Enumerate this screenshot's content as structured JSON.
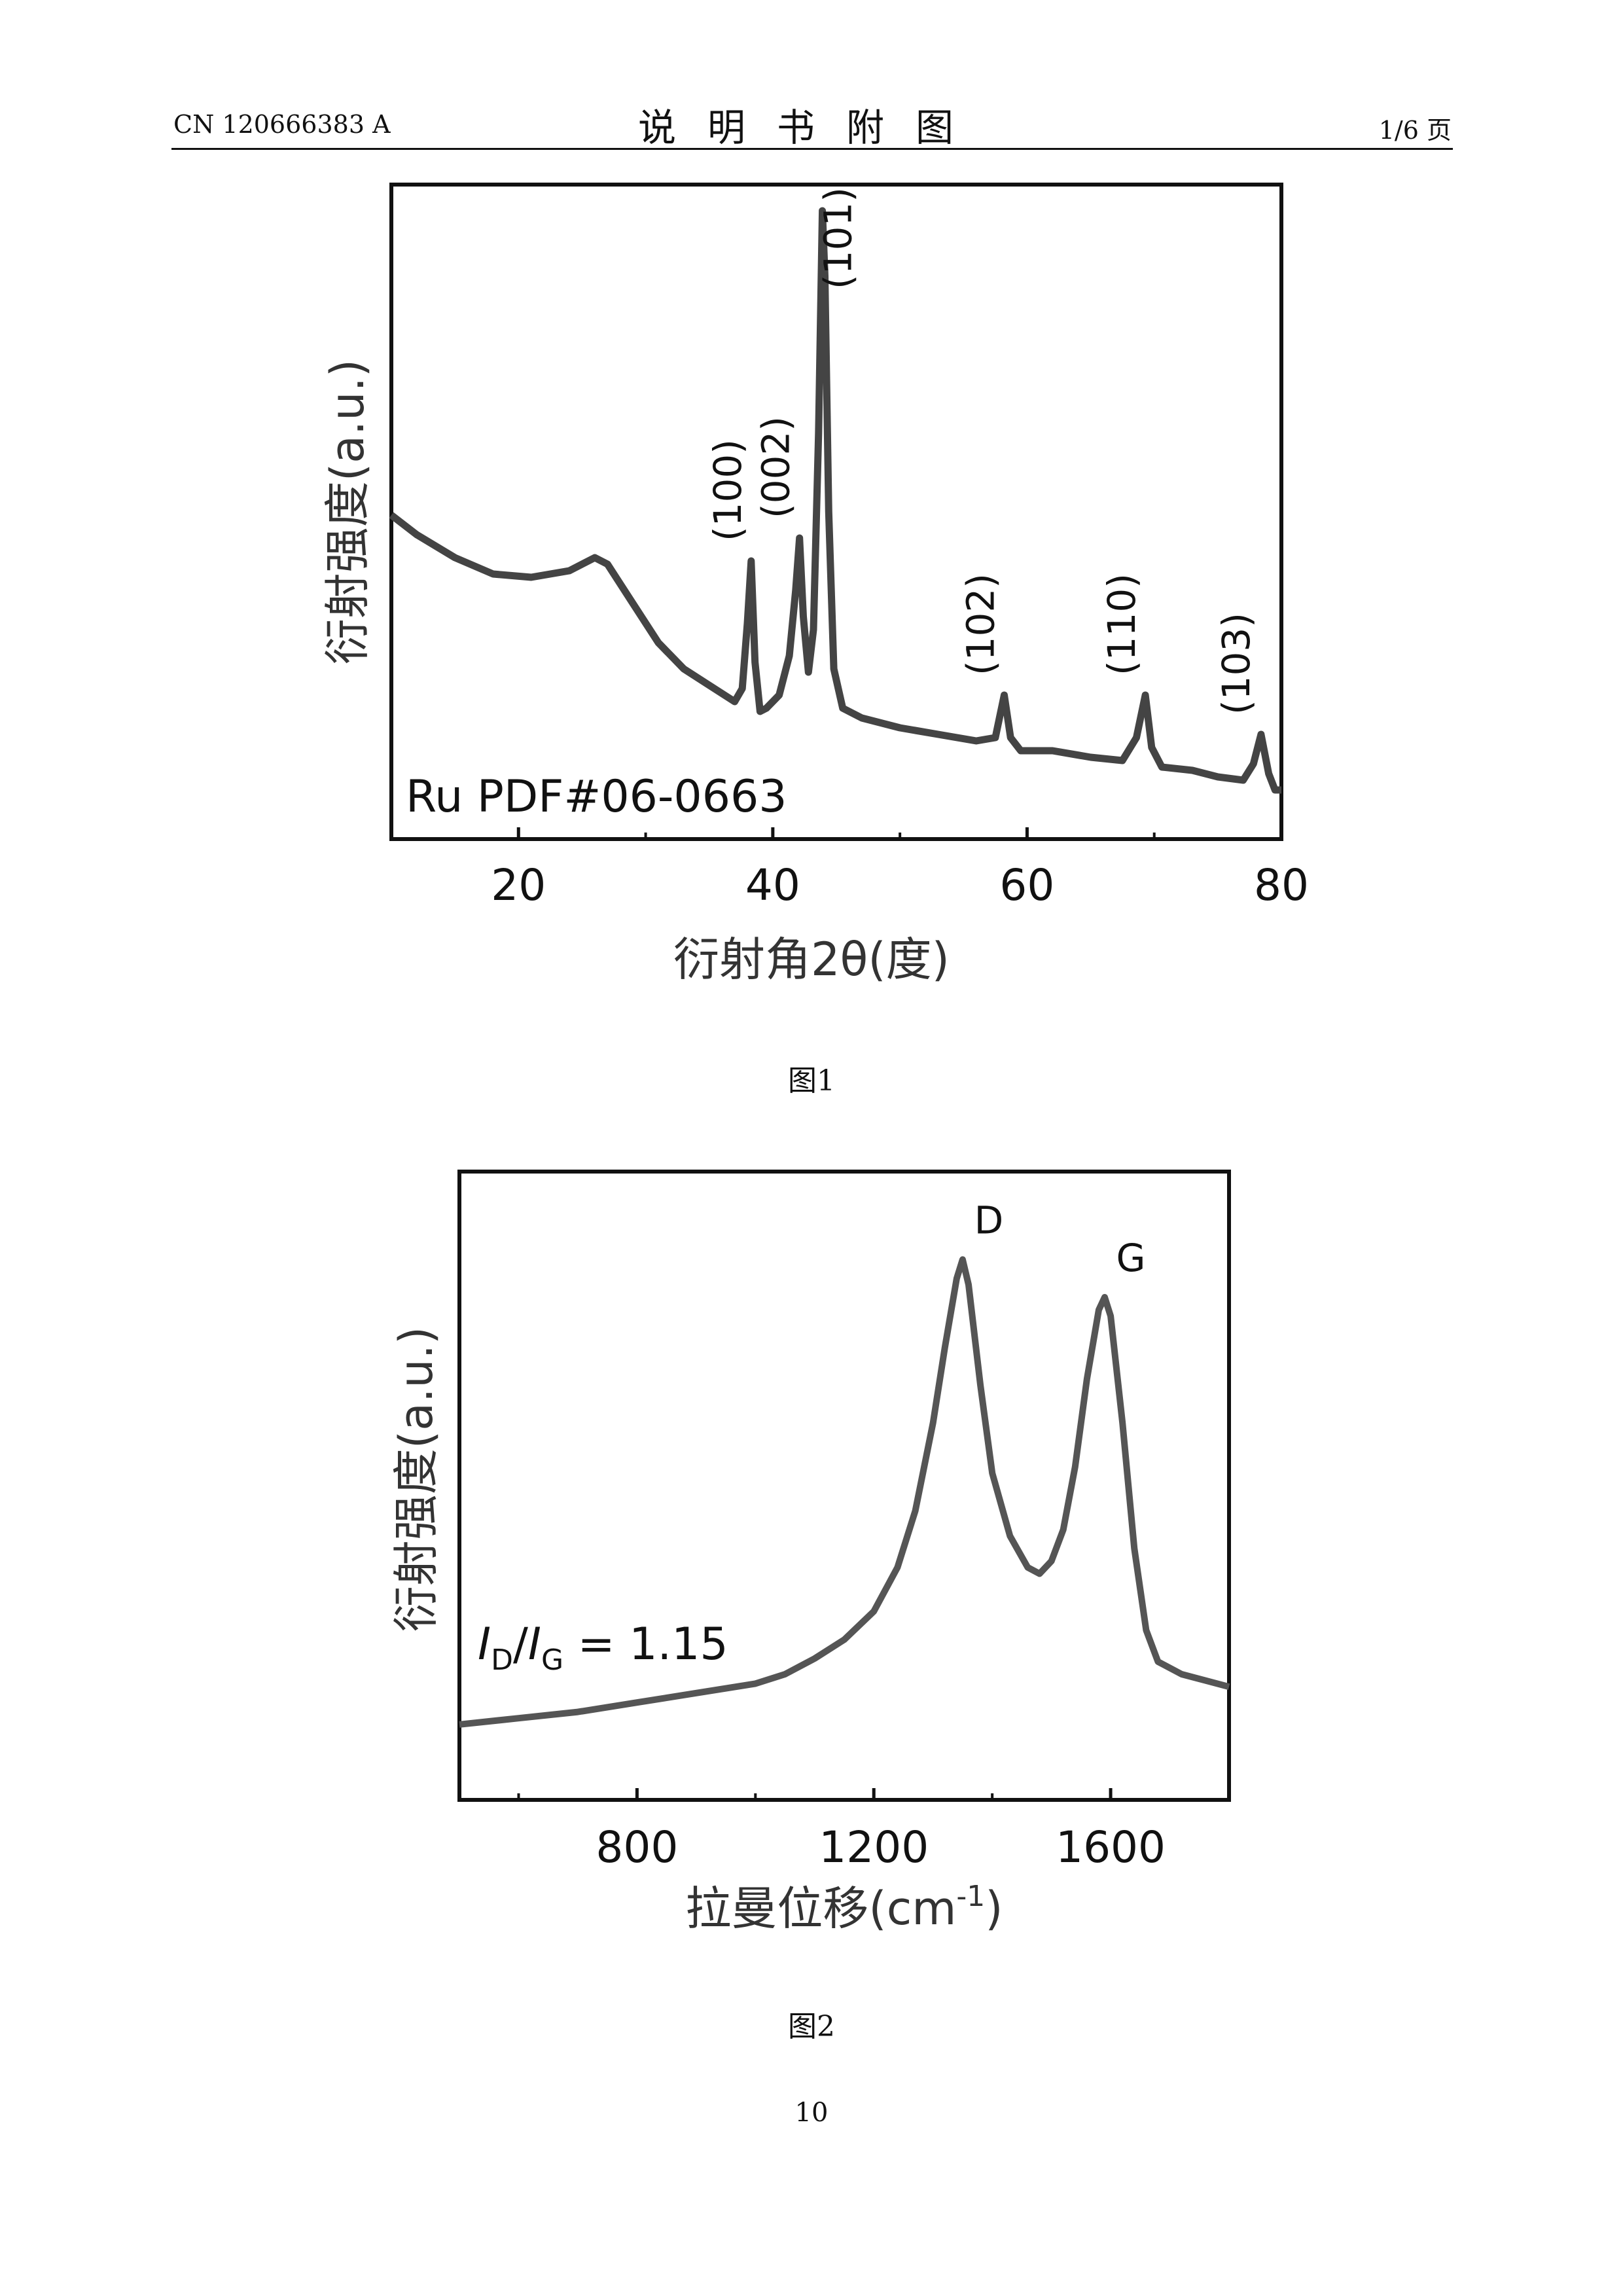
{
  "header": {
    "patent_number": "CN 120666383 A",
    "section_title": "说明书附图",
    "page_of": "1/6 页"
  },
  "figures": [
    {
      "caption": "图1"
    },
    {
      "caption": "图2"
    }
  ],
  "page_number": "10",
  "chart_data": [
    {
      "type": "line",
      "xlabel": "衍射角2θ(度)",
      "ylabel": "衍射强度(a.u.)",
      "xlim": [
        10,
        80
      ],
      "ylim": [
        0,
        1
      ],
      "xticks": [
        "20",
        "40",
        "60",
        "80"
      ],
      "xtick_values": [
        20,
        40,
        60,
        80
      ],
      "annotation": "Ru PDF#06-0663",
      "peak_labels": [
        {
          "label": "(100)",
          "x": 38.4
        },
        {
          "label": "(002)",
          "x": 42.2
        },
        {
          "label": "(101)",
          "x": 44.0
        },
        {
          "label": "(102)",
          "x": 58.3
        },
        {
          "label": "(110)",
          "x": 69.4
        },
        {
          "label": "(103)",
          "x": 78.4
        }
      ],
      "series": [
        {
          "x": [
            10,
            12,
            15,
            18,
            21,
            24,
            26,
            27,
            29,
            31,
            33,
            35,
            37,
            37.6,
            38.0,
            38.3,
            38.6,
            39.0,
            39.5,
            40.5,
            41.3,
            41.8,
            42.1,
            42.4,
            42.8,
            43.2,
            43.6,
            43.9,
            44.1,
            44.4,
            44.8,
            45.5,
            47,
            50,
            53,
            56,
            57.5,
            58.2,
            58.7,
            59.5,
            62,
            65,
            67.5,
            68.6,
            69.3,
            69.8,
            70.6,
            73,
            75,
            77,
            77.8,
            78.4,
            79,
            79.5,
            80
          ],
          "y": [
            0.495,
            0.465,
            0.43,
            0.405,
            0.4,
            0.41,
            0.43,
            0.42,
            0.36,
            0.3,
            0.26,
            0.235,
            0.21,
            0.23,
            0.33,
            0.425,
            0.27,
            0.195,
            0.2,
            0.22,
            0.28,
            0.38,
            0.46,
            0.34,
            0.255,
            0.32,
            0.62,
            0.96,
            0.86,
            0.5,
            0.26,
            0.2,
            0.185,
            0.17,
            0.16,
            0.15,
            0.155,
            0.22,
            0.155,
            0.135,
            0.135,
            0.125,
            0.12,
            0.155,
            0.22,
            0.14,
            0.11,
            0.105,
            0.095,
            0.09,
            0.115,
            0.16,
            0.1,
            0.075,
            0.075
          ]
        }
      ]
    },
    {
      "type": "line",
      "xlabel": "拉曼位移(cm-1)",
      "ylabel": "衍射强度(a.u.)",
      "xlim": [
        500,
        1800
      ],
      "ylim": [
        0,
        1
      ],
      "xticks": [
        "800",
        "1200",
        "1600"
      ],
      "xtick_values": [
        800,
        1200,
        1600
      ],
      "annotation": "I_D/I_G = 1.15",
      "peak_labels": [
        {
          "label": "D",
          "x": 1350
        },
        {
          "label": "G",
          "x": 1590
        }
      ],
      "series": [
        {
          "x": [
            500,
            600,
            700,
            800,
            900,
            1000,
            1050,
            1100,
            1150,
            1200,
            1240,
            1270,
            1300,
            1320,
            1340,
            1350,
            1360,
            1380,
            1400,
            1430,
            1460,
            1480,
            1500,
            1520,
            1540,
            1560,
            1580,
            1590,
            1600,
            1620,
            1640,
            1660,
            1680,
            1720,
            1760,
            1800
          ],
          "y": [
            0.12,
            0.13,
            0.14,
            0.155,
            0.17,
            0.185,
            0.2,
            0.225,
            0.255,
            0.3,
            0.37,
            0.46,
            0.6,
            0.72,
            0.83,
            0.86,
            0.82,
            0.66,
            0.52,
            0.42,
            0.37,
            0.36,
            0.38,
            0.43,
            0.53,
            0.67,
            0.78,
            0.8,
            0.77,
            0.6,
            0.4,
            0.27,
            0.22,
            0.2,
            0.19,
            0.18
          ]
        }
      ]
    }
  ]
}
